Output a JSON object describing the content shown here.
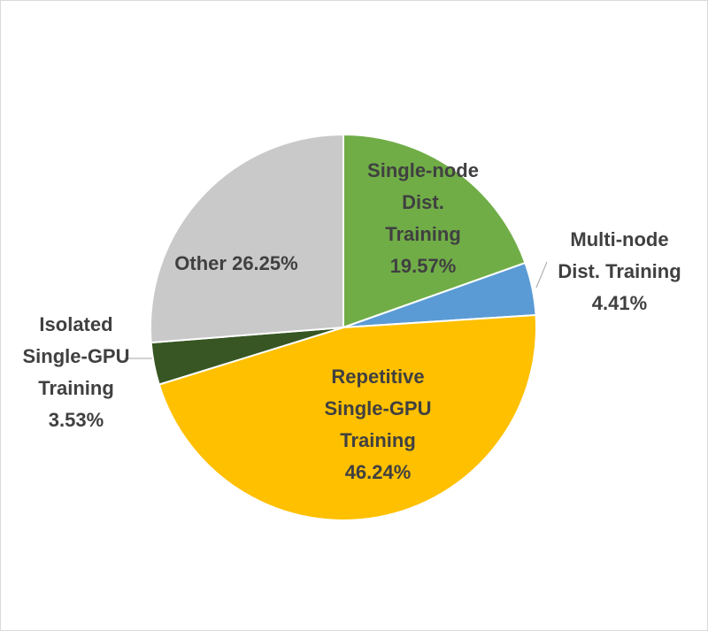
{
  "chart_data": {
    "type": "pie",
    "slices": [
      {
        "name": "Single-node Dist. Training",
        "value": 19.57,
        "color": "#70ad47",
        "label_lines": [
          "Single-node",
          "Dist.",
          "Training",
          "19.57%"
        ]
      },
      {
        "name": "Multi-node Dist. Training",
        "value": 4.41,
        "color": "#5b9bd5",
        "label_lines": [
          "Multi-node",
          "Dist. Training",
          "4.41%"
        ]
      },
      {
        "name": "Repetitive Single-GPU Training",
        "value": 46.24,
        "color": "#ffc000",
        "label_lines": [
          "Repetitive",
          "Single-GPU",
          "Training",
          "46.24%"
        ]
      },
      {
        "name": "Isolated Single-GPU Training",
        "value": 3.53,
        "color": "#375623",
        "label_lines": [
          "Isolated",
          "Single-GPU",
          "Training",
          "3.53%"
        ]
      },
      {
        "name": "Other",
        "value": 26.25,
        "color": "#c9c9c9",
        "label_lines": [
          "Other 26.25%"
        ]
      }
    ],
    "start_position": "top",
    "direction": "clockwise",
    "label_color": "#404040"
  }
}
